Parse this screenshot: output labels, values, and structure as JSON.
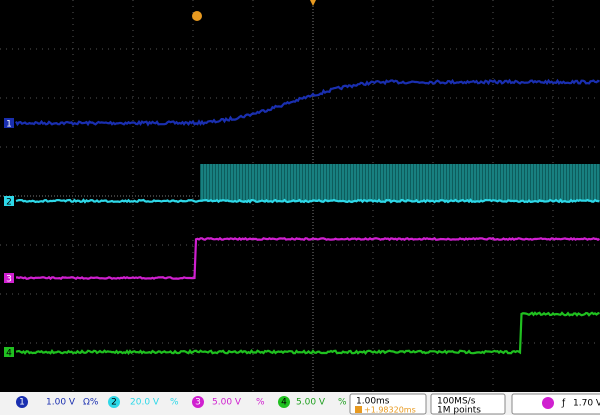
{
  "channels": [
    {
      "label": "1",
      "scale": "1.00 V",
      "flags": "Ω%"
    },
    {
      "label": "2",
      "scale": "20.0 V",
      "flags": "%"
    },
    {
      "label": "3",
      "scale": "5.00 V",
      "flags": "%"
    },
    {
      "label": "4",
      "scale": "5.00 V",
      "flags": "%"
    }
  ],
  "timebase": "1.00ms",
  "trigger_position": "+1.98320ms",
  "sample_rate": "100MS/s",
  "record_length": "1M points",
  "trigger": {
    "slope": "ƒ",
    "level": "1.70 V"
  }
}
